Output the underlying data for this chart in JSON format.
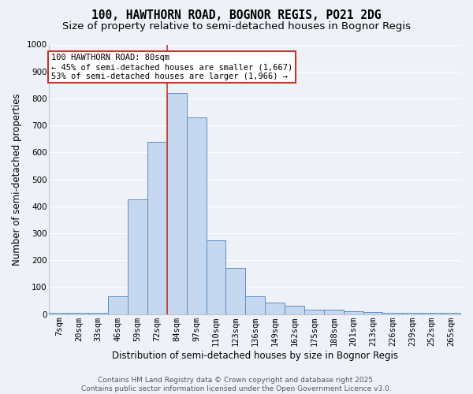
{
  "title1": "100, HAWTHORN ROAD, BOGNOR REGIS, PO21 2DG",
  "title2": "Size of property relative to semi-detached houses in Bognor Regis",
  "xlabel": "Distribution of semi-detached houses by size in Bognor Regis",
  "ylabel": "Number of semi-detached properties",
  "categories": [
    "7sqm",
    "20sqm",
    "33sqm",
    "46sqm",
    "59sqm",
    "72sqm",
    "84sqm",
    "97sqm",
    "110sqm",
    "123sqm",
    "136sqm",
    "149sqm",
    "162sqm",
    "175sqm",
    "188sqm",
    "201sqm",
    "213sqm",
    "226sqm",
    "239sqm",
    "252sqm",
    "265sqm"
  ],
  "values": [
    5,
    5,
    5,
    65,
    425,
    640,
    820,
    730,
    275,
    170,
    65,
    42,
    32,
    18,
    18,
    10,
    8,
    5,
    5,
    5,
    5
  ],
  "bar_color": "#c5d8f0",
  "bar_edge_color": "#5b8ec4",
  "vline_x": 6.0,
  "vline_color": "#c0392b",
  "annotation_text": "100 HAWTHORN ROAD: 80sqm\n← 45% of semi-detached houses are smaller (1,667)\n53% of semi-detached houses are larger (1,966) →",
  "annotation_box_color": "#ffffff",
  "annotation_box_edge": "#c0392b",
  "ylim": [
    0,
    1000
  ],
  "yticks": [
    0,
    100,
    200,
    300,
    400,
    500,
    600,
    700,
    800,
    900,
    1000
  ],
  "bg_color": "#eef2f8",
  "grid_color": "#ffffff",
  "footer": "Contains HM Land Registry data © Crown copyright and database right 2025.\nContains public sector information licensed under the Open Government Licence v3.0.",
  "title_fontsize": 10.5,
  "subtitle_fontsize": 9.5,
  "axis_label_fontsize": 8.5,
  "tick_fontsize": 7.5,
  "footer_fontsize": 6.5,
  "ann_fontsize": 7.5
}
